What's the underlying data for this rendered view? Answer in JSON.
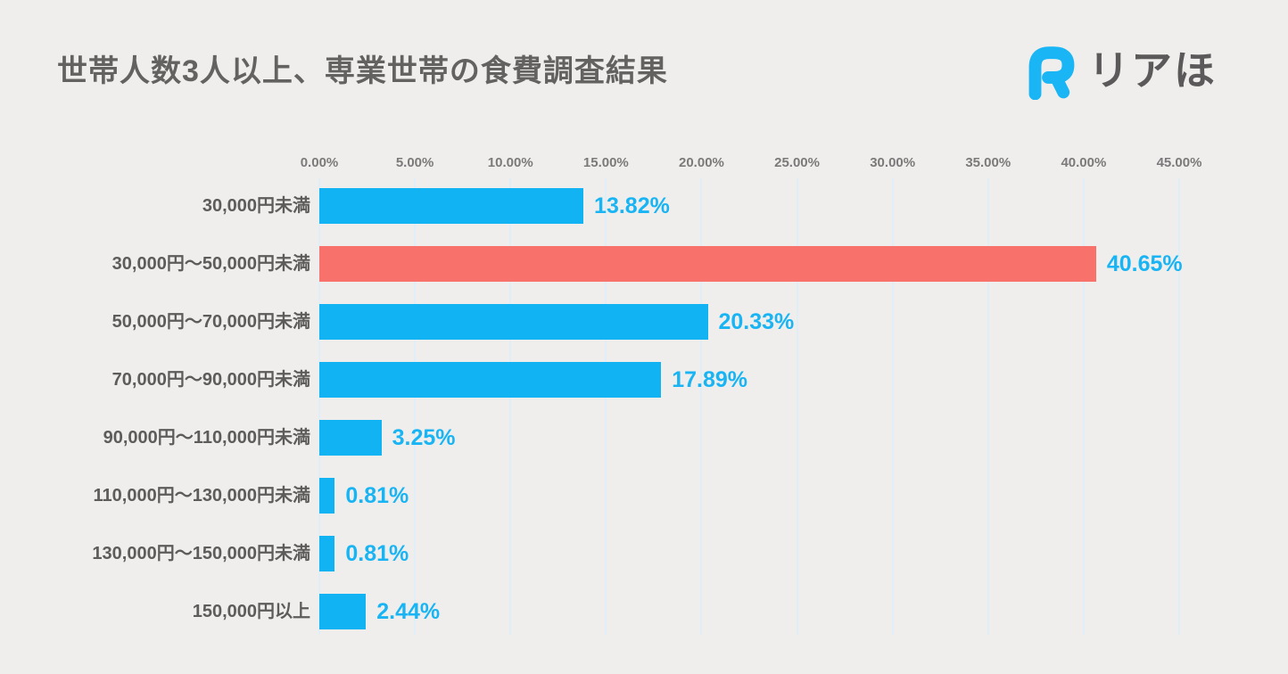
{
  "page": {
    "background": "#efeeec"
  },
  "header": {
    "title": "世帯人数3人以上、専業世帯の食費調査結果",
    "title_color": "#646261"
  },
  "brand": {
    "logo_icon": "riaho-r-icon",
    "logo_text": "リアほ",
    "logo_icon_color": "#1ab5f4",
    "logo_text_color": "#5b5959"
  },
  "chart_data": {
    "type": "bar",
    "orientation": "horizontal",
    "title": "世帯人数3人以上、専業世帯の食費調査結果",
    "categories": [
      "30,000円未満",
      "30,000円〜50,000円未満",
      "50,000円〜70,000円未満",
      "70,000円〜90,000円未満",
      "90,000円〜110,000円未満",
      "110,000円〜130,000円未満",
      "130,000円〜150,000円未満",
      "150,000円以上"
    ],
    "values": [
      13.82,
      40.65,
      20.33,
      17.89,
      3.25,
      0.81,
      0.81,
      2.44
    ],
    "value_labels": [
      "13.82%",
      "40.65%",
      "20.33%",
      "17.89%",
      "3.25%",
      "0.81%",
      "0.81%",
      "2.44%"
    ],
    "highlight_index": 1,
    "bar_color": "#12b3f2",
    "highlight_color": "#f8716a",
    "value_text_color": "#18b4f4",
    "axis": {
      "ticks": [
        "0.00%",
        "5.00%",
        "10.00%",
        "15.00%",
        "20.00%",
        "25.00%",
        "30.00%",
        "35.00%",
        "40.00%",
        "45.00%"
      ],
      "min": 0,
      "max": 45,
      "grid": true,
      "gridline_color": "#e0eff7",
      "legend": "none"
    }
  }
}
